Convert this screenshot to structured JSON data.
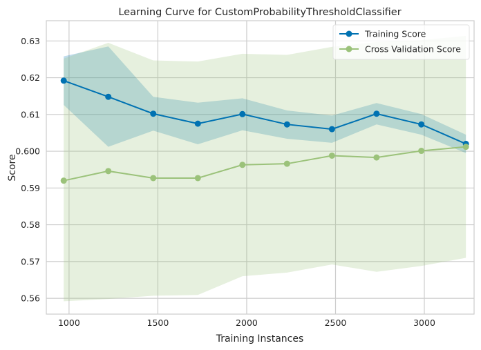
{
  "chart_data": {
    "type": "line",
    "title": "Learning Curve for CustomProbabilityThresholdClassifier",
    "xlabel": "Training Instances",
    "ylabel": "Score",
    "xlim": [
      872,
      3280
    ],
    "ylim": [
      0.5557,
      0.6355
    ],
    "xticks": [
      1000,
      1500,
      2000,
      2500,
      3000
    ],
    "yticks": [
      0.56,
      0.57,
      0.58,
      0.59,
      0.6,
      0.61,
      0.62,
      0.63
    ],
    "xtick_labels": [
      "1000",
      "1500",
      "2000",
      "2500",
      "3000"
    ],
    "ytick_labels": [
      "0.56",
      "0.57",
      "0.58",
      "0.59",
      "0.600",
      "0.61",
      "0.62",
      "0.63"
    ],
    "grid": true,
    "legend_position": "top-right",
    "x": [
      970,
      1221,
      1474,
      1725,
      1976,
      2227,
      2480,
      2731,
      2983,
      3234
    ],
    "series": [
      {
        "name": "Training Score",
        "color": "#0072b2",
        "values": [
          0.6192,
          0.6148,
          0.6102,
          0.6075,
          0.6101,
          0.6073,
          0.606,
          0.6102,
          0.6073,
          0.602
        ],
        "band_upper": [
          0.6258,
          0.6285,
          0.6148,
          0.6132,
          0.6144,
          0.6111,
          0.6097,
          0.6131,
          0.6101,
          0.6045
        ],
        "band_lower": [
          0.6126,
          0.6012,
          0.6056,
          0.6019,
          0.6057,
          0.6034,
          0.6023,
          0.6073,
          0.6045,
          0.5995
        ]
      },
      {
        "name": "Cross Validation Score",
        "color": "#9bc27a",
        "values": [
          0.592,
          0.5946,
          0.5927,
          0.5927,
          0.5963,
          0.5966,
          0.5988,
          0.5983,
          0.6001,
          0.6012
        ],
        "band_upper": [
          0.6252,
          0.6295,
          0.6247,
          0.6244,
          0.6265,
          0.6262,
          0.6284,
          0.6297,
          0.6302,
          0.6314
        ],
        "band_lower": [
          0.5592,
          0.5598,
          0.5607,
          0.5609,
          0.566,
          0.567,
          0.5692,
          0.5672,
          0.5688,
          0.571
        ]
      }
    ]
  }
}
